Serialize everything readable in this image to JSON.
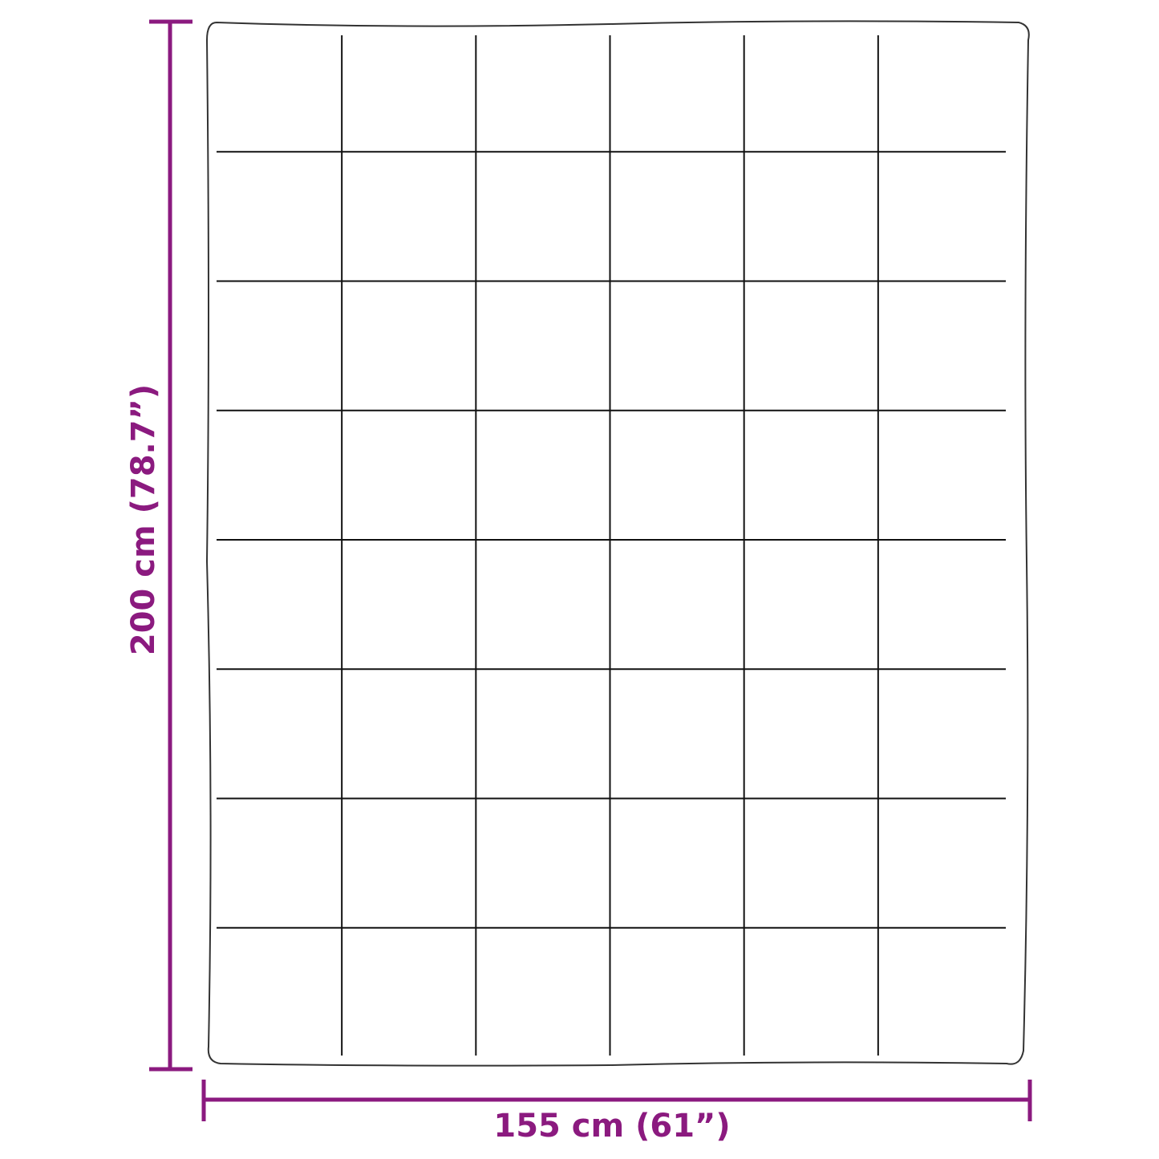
{
  "colors": {
    "dimension": "#8b1a7f",
    "outline": "#222222",
    "background": "#ffffff"
  },
  "dimensions": {
    "height_label": "200 cm (78.7”)",
    "width_label": "155 cm (61”)"
  },
  "blanket": {
    "columns": 6,
    "rows": 8
  }
}
